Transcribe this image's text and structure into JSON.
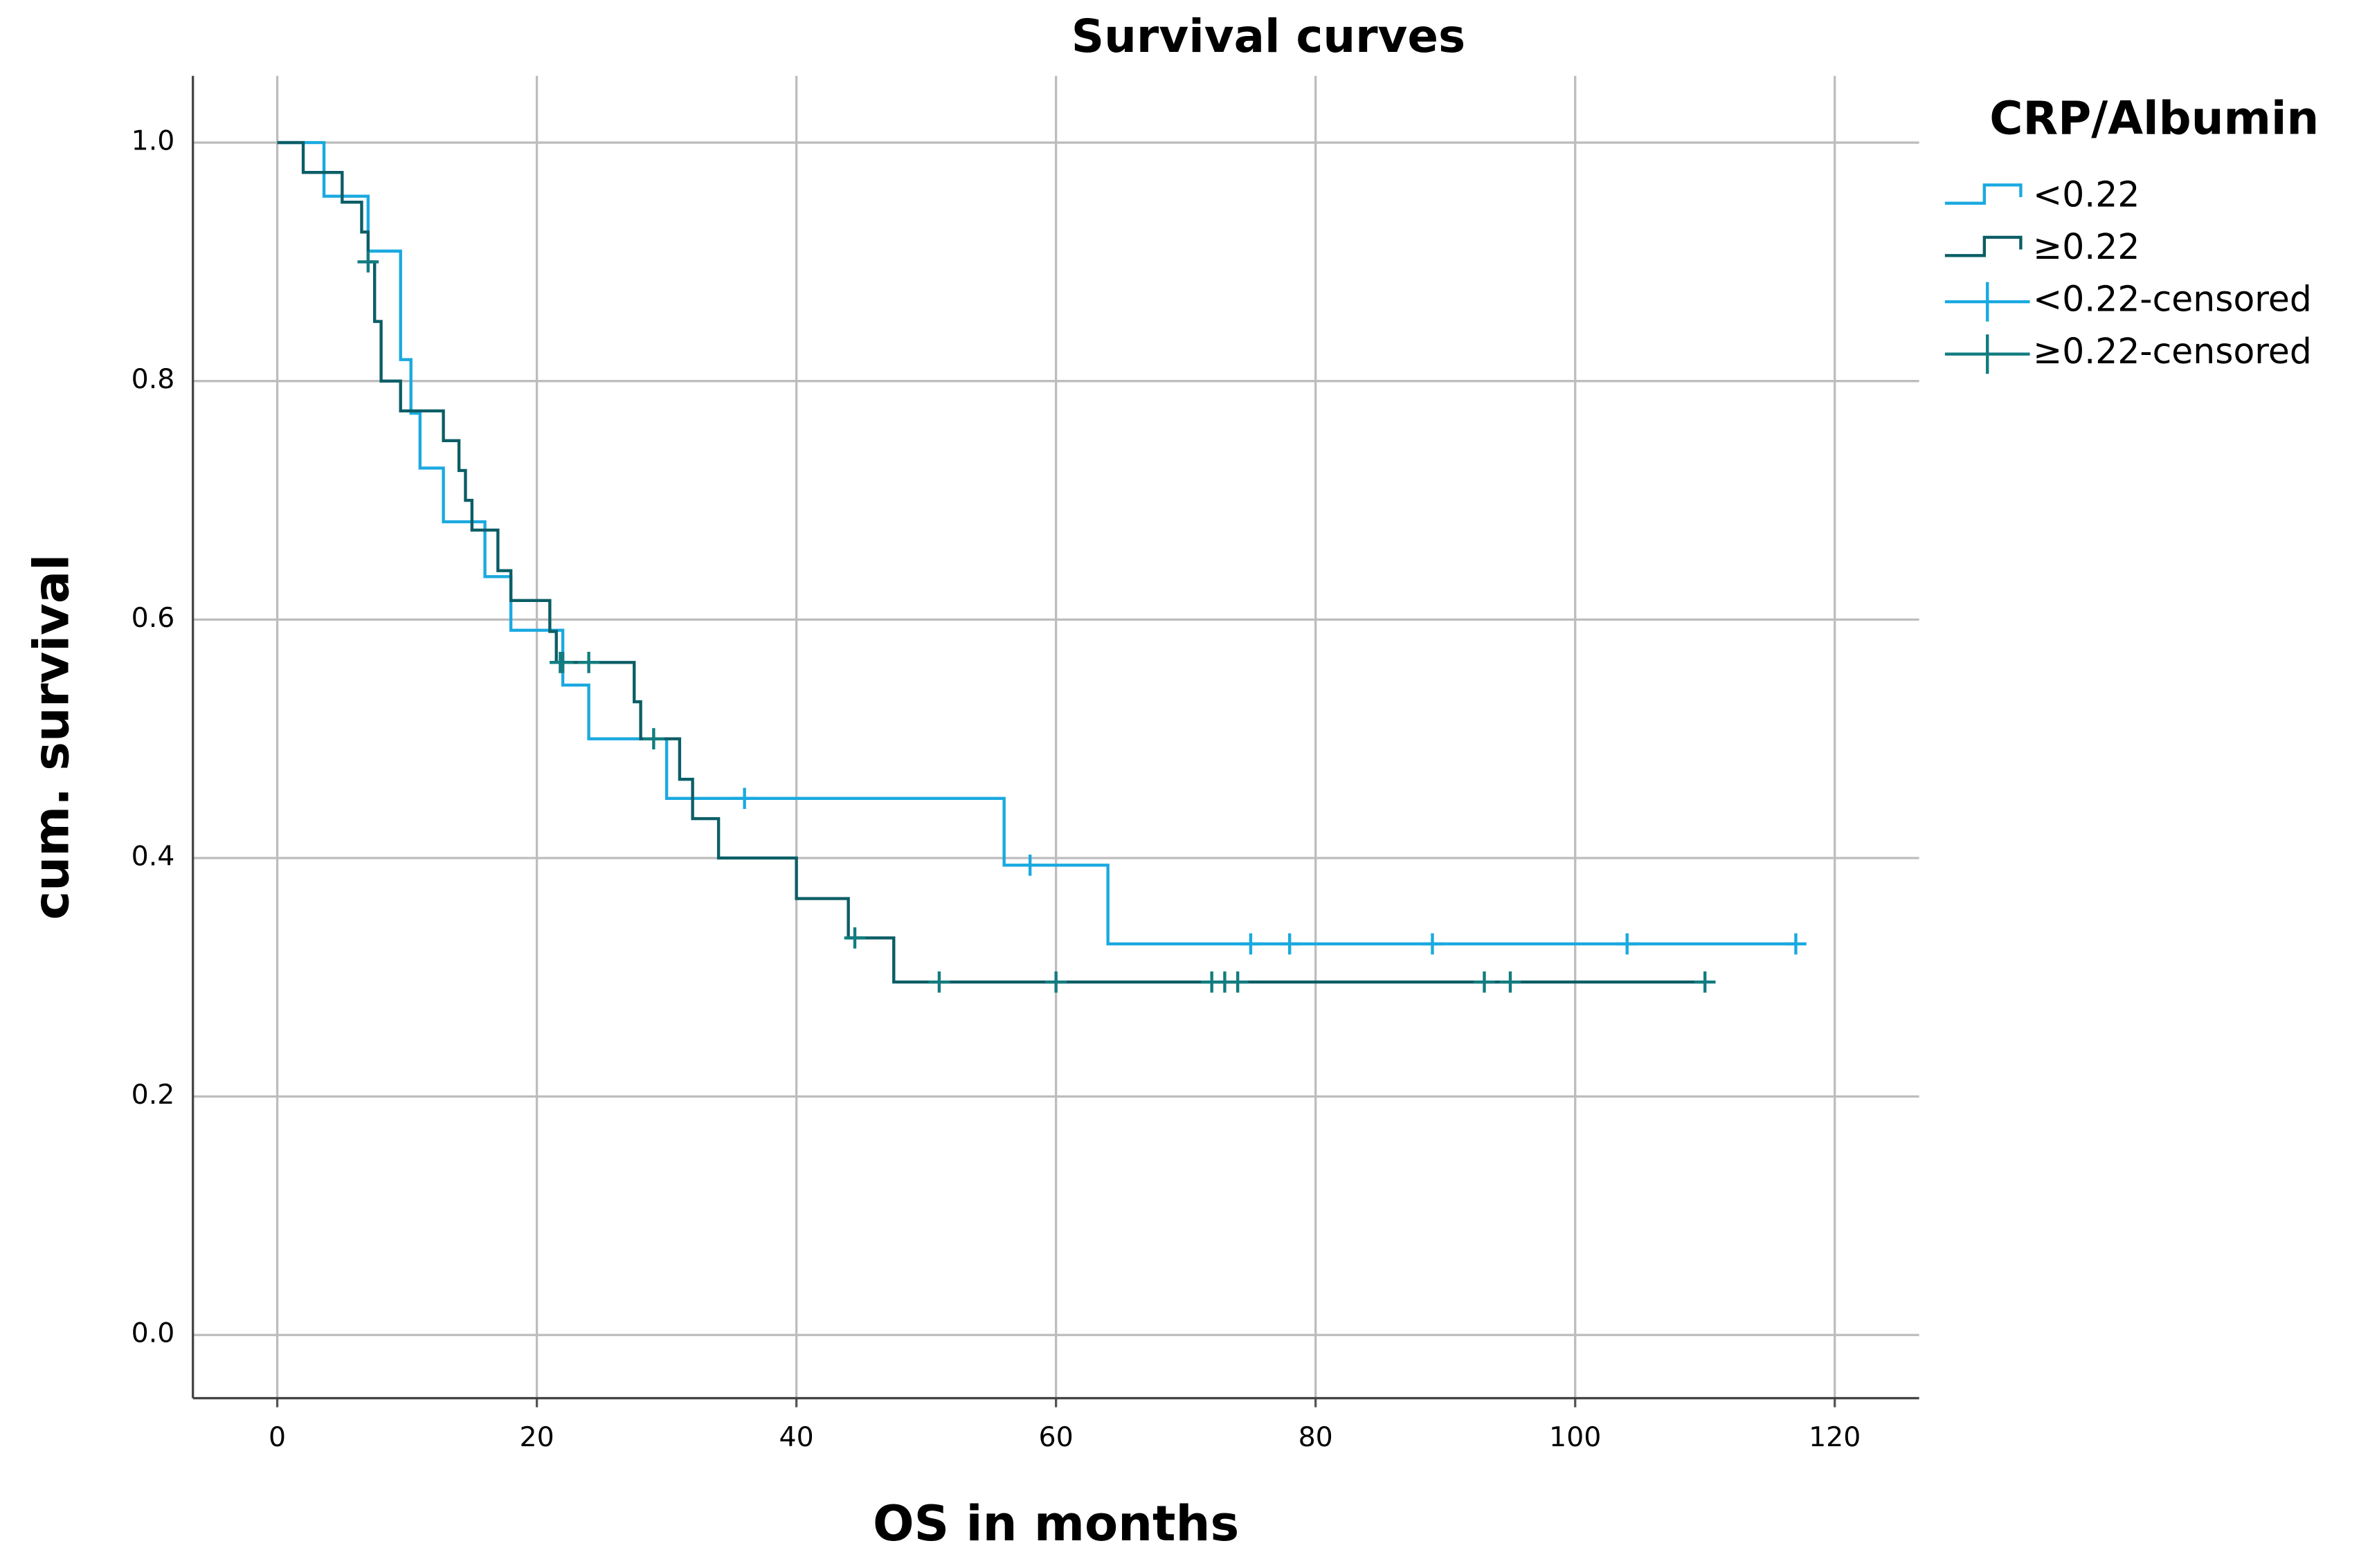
{
  "chart_data": {
    "type": "step",
    "title": "Survival curves",
    "x_label": "OS in months",
    "y_label": "cum. survival",
    "legend_title": "CRP/Albumin",
    "legend": "right",
    "grid": true,
    "xlim": [
      -6.5,
      126.5
    ],
    "ylim": [
      -0.053,
      1.056
    ],
    "xticks": [
      0,
      20,
      40,
      60,
      80,
      100,
      120
    ],
    "yticks": [
      {
        "value": 0,
        "label": "0.0"
      },
      0.2,
      0.4,
      0.6,
      0.8,
      {
        "value": 1,
        "label": "1.0"
      }
    ],
    "series": [
      {
        "name": "<0.22",
        "color": "#1aa9e0",
        "marker": "step",
        "x": [
          0,
          3.6,
          7,
          9.5,
          10.3,
          11,
          12.8,
          16,
          18,
          22,
          24,
          30,
          56,
          64,
          117
        ],
        "values": [
          1,
          0.955,
          0.909,
          0.818,
          0.773,
          0.727,
          0.682,
          0.636,
          0.591,
          0.545,
          0.5,
          0.45,
          0.394,
          0.328,
          0.328
        ]
      },
      {
        "name": "≥0.22",
        "color": "#0b5e66",
        "marker": "step",
        "x": [
          0,
          2,
          5,
          6.5,
          7,
          7.5,
          8,
          9.5,
          12.8,
          14,
          14.5,
          15,
          17,
          18,
          21,
          21.5,
          27.5,
          28,
          31,
          32,
          34,
          40,
          44,
          47.5,
          110
        ],
        "values": [
          1,
          0.975,
          0.95,
          0.925,
          0.9,
          0.85,
          0.8,
          0.775,
          0.75,
          0.725,
          0.7,
          0.675,
          0.641,
          0.616,
          0.59,
          0.564,
          0.531,
          0.5,
          0.466,
          0.433,
          0.4,
          0.366,
          0.333,
          0.296,
          0.296
        ]
      },
      {
        "name": "<0.22-censored",
        "color": "#1aa9e0",
        "marker": "plus",
        "x": [
          36,
          58,
          75,
          78,
          89,
          104,
          117
        ],
        "values": [
          0.45,
          0.394,
          0.328,
          0.328,
          0.328,
          0.328,
          0.328
        ]
      },
      {
        "name": "≥0.22-censored",
        "color": "#127c80",
        "marker": "plus",
        "x": [
          7,
          21.8,
          22,
          24,
          29,
          44.5,
          51,
          60,
          72,
          73,
          74,
          93,
          95,
          110
        ],
        "values": [
          0.9,
          0.564,
          0.564,
          0.564,
          0.5,
          0.333,
          0.296,
          0.296,
          0.296,
          0.296,
          0.296,
          0.296,
          0.296,
          0.296
        ]
      }
    ]
  }
}
